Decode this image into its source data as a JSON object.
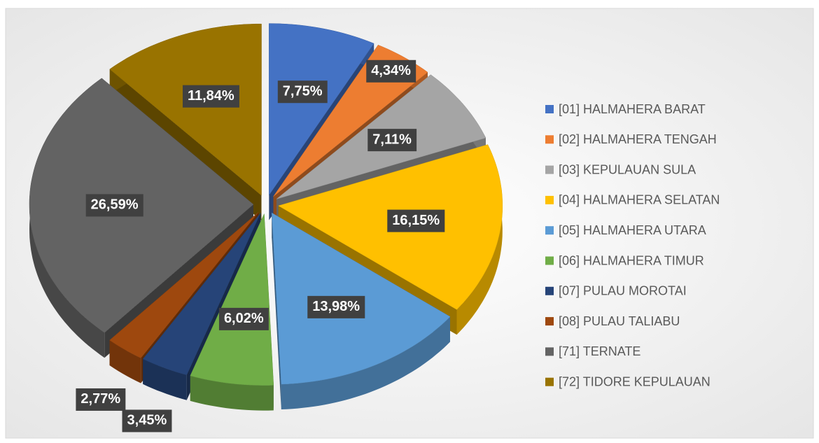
{
  "chart_data": {
    "type": "pie3d",
    "categories": [
      "[01] HALMAHERA BARAT",
      "[02] HALMAHERA TENGAH",
      "[03] KEPULAUAN SULA",
      "[04] HALMAHERA SELATAN",
      "[05] HALMAHERA UTARA",
      "[06] HALMAHERA TIMUR",
      "[07] PULAU MOROTAI",
      "[08] PULAU TALIABU",
      "[71] TERNATE",
      "[72] TIDORE KEPULAUAN"
    ],
    "values": [
      7.75,
      4.34,
      7.11,
      16.15,
      13.98,
      6.02,
      3.45,
      2.77,
      26.59,
      11.84
    ],
    "value_labels": [
      "7,75%",
      "4,34%",
      "7,11%",
      "16,15%",
      "13,98%",
      "6,02%",
      "3,45%",
      "2,77%",
      "26,59%",
      "11,84%"
    ],
    "colors": [
      "#4472c4",
      "#ed7d31",
      "#a5a5a5",
      "#ffc000",
      "#5b9bd5",
      "#70ad47",
      "#264478",
      "#9e480e",
      "#636363",
      "#997300"
    ],
    "legend": "right"
  }
}
